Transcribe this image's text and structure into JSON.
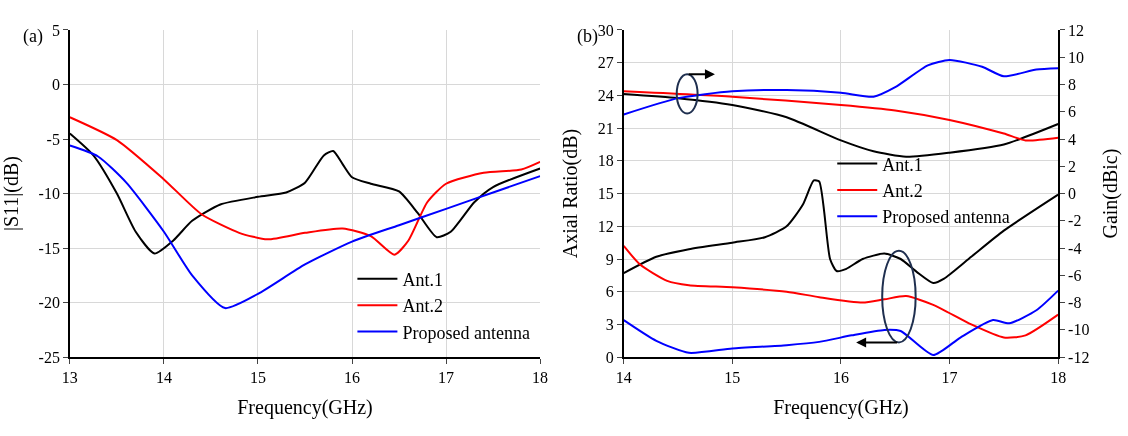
{
  "chart_data": [
    {
      "type": "line",
      "title": "(a)",
      "xlabel": "Frequency(GHz)",
      "ylabel": "|S11|(dB)",
      "xlim": [
        13,
        18
      ],
      "xticks": [
        13,
        14,
        15,
        16,
        17,
        18
      ],
      "ylim": [
        -25,
        5
      ],
      "yticks": [
        -25,
        -20,
        -15,
        -10,
        -5,
        0,
        5
      ],
      "grid": true,
      "legend": "bottom right",
      "series": [
        {
          "name": "Ant.1",
          "color": "#000000",
          "x": [
            13,
            13.25,
            13.5,
            13.7,
            13.9,
            14.1,
            14.3,
            14.6,
            15,
            15.3,
            15.5,
            15.7,
            15.8,
            15.9,
            16,
            16.2,
            16.5,
            16.7,
            16.9,
            17.05,
            17.3,
            17.5,
            18
          ],
          "values": [
            -4.5,
            -6.5,
            -10,
            -13.5,
            -15.5,
            -14.3,
            -12.5,
            -11,
            -10.3,
            -9.9,
            -9,
            -6.5,
            -6.1,
            -7.3,
            -8.5,
            -9.1,
            -9.8,
            -11.8,
            -14,
            -13.5,
            -10.8,
            -9.4,
            -7.7
          ]
        },
        {
          "name": "Ant.2",
          "color": "#ff0000",
          "x": [
            13,
            13.5,
            14,
            14.4,
            14.8,
            15.1,
            15.5,
            15.9,
            16.2,
            16.45,
            16.6,
            16.8,
            17,
            17.4,
            17.8,
            18
          ],
          "values": [
            -3,
            -5.1,
            -8.7,
            -11.9,
            -13.6,
            -14.2,
            -13.6,
            -13.2,
            -13.9,
            -15.6,
            -14.3,
            -10.8,
            -9.1,
            -8.1,
            -7.8,
            -7.1
          ]
        },
        {
          "name": "Proposed antenna",
          "color": "#0000ff",
          "x": [
            13,
            13.3,
            13.6,
            14,
            14.3,
            14.65,
            15,
            15.5,
            16,
            16.5,
            17,
            17.5,
            18
          ],
          "values": [
            -5.6,
            -6.6,
            -9,
            -13.5,
            -17.5,
            -20.5,
            -19.2,
            -16.5,
            -14.4,
            -12.9,
            -11.4,
            -9.9,
            -8.4
          ]
        }
      ]
    },
    {
      "type": "line",
      "title": "(b)",
      "xlabel": "Frequency(GHz)",
      "ylabel": "Axial Ratio(dB)",
      "y2label": "Gain(dBic)",
      "xlim": [
        14,
        18
      ],
      "xticks": [
        14,
        15,
        16,
        17,
        18
      ],
      "ylim": [
        0,
        30
      ],
      "yticks": [
        0,
        3,
        6,
        9,
        12,
        15,
        18,
        21,
        24,
        27,
        30
      ],
      "y2lim": [
        -12,
        12
      ],
      "y2ticks": [
        -12,
        -10,
        -8,
        -6,
        -4,
        -2,
        0,
        2,
        4,
        6,
        8,
        10,
        12
      ],
      "grid": true,
      "legend": "center",
      "series": [
        {
          "name": "Ant.1",
          "color": "#000000",
          "x": [
            14,
            14.3,
            14.6,
            15,
            15.3,
            15.5,
            15.65,
            15.75,
            15.8,
            15.9,
            15.96,
            16.05,
            16.2,
            16.4,
            16.55,
            16.7,
            16.85,
            16.95,
            17.2,
            17.5,
            18
          ],
          "values": [
            7.7,
            9.2,
            9.9,
            10.5,
            11,
            12,
            14,
            16.2,
            16.1,
            9,
            7.9,
            8.1,
            9,
            9.5,
            9,
            7.8,
            6.8,
            7.2,
            9.2,
            11.6,
            14.9
          ]
        },
        {
          "name": "Ant.2",
          "color": "#ff0000",
          "x": [
            14,
            14.15,
            14.4,
            14.6,
            15,
            15.5,
            15.8,
            16.2,
            16.4,
            16.6,
            16.85,
            17.2,
            17.5,
            17.7,
            18
          ],
          "values": [
            10.2,
            8.5,
            7,
            6.6,
            6.4,
            6,
            5.5,
            5,
            5.3,
            5.6,
            4.8,
            3,
            1.8,
            2,
            3.9
          ]
        },
        {
          "name": "Proposed antenna",
          "color": "#0000ff",
          "x": [
            14,
            14.3,
            14.6,
            15,
            15.5,
            15.8,
            16.1,
            16.4,
            16.55,
            16.85,
            17.1,
            17.4,
            17.55,
            17.8,
            18
          ],
          "values": [
            3.4,
            1.5,
            0.4,
            0.8,
            1.1,
            1.4,
            2,
            2.5,
            2.4,
            0.2,
            1.8,
            3.4,
            3.1,
            4.3,
            6.1
          ]
        },
        {
          "color": "#000000",
          "axis": "y2",
          "x": [
            14,
            14.5,
            15,
            15.5,
            16,
            16.3,
            16.6,
            17,
            17.5,
            18
          ],
          "values": [
            7.3,
            7,
            6.5,
            5.6,
            3.9,
            3.1,
            2.7,
            3,
            3.6,
            5.1
          ]
        },
        {
          "color": "#ff0000",
          "axis": "y2",
          "x": [
            14,
            15,
            16,
            16.5,
            17,
            17.5,
            17.7,
            18
          ],
          "values": [
            7.5,
            7.1,
            6.5,
            6.1,
            5.4,
            4.4,
            3.9,
            4.1
          ]
        },
        {
          "color": "#0000ff",
          "axis": "y2",
          "x": [
            14,
            14.5,
            15,
            15.5,
            16,
            16.3,
            16.5,
            16.8,
            17,
            17.3,
            17.5,
            17.8,
            18
          ],
          "values": [
            5.8,
            7,
            7.5,
            7.6,
            7.4,
            7.1,
            7.8,
            9.4,
            9.8,
            9.3,
            8.6,
            9.1,
            9.2
          ]
        }
      ]
    }
  ]
}
